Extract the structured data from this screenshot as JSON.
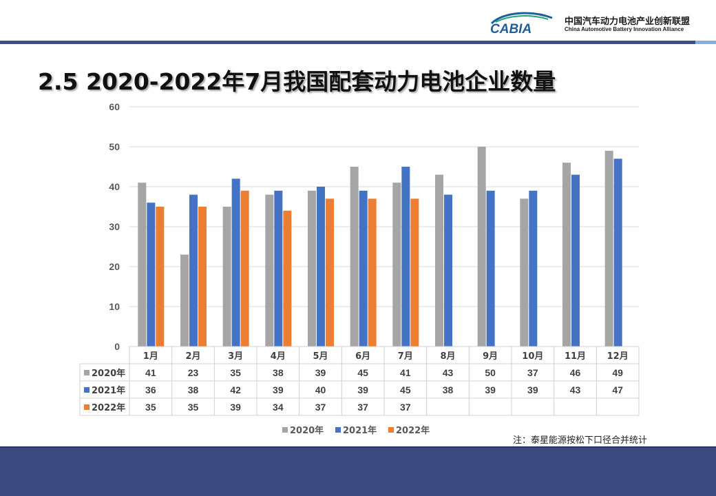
{
  "header": {
    "logo_text": "CABIA",
    "org_name_cn": "中国汽车动力电池产业创新联盟",
    "org_name_en": "China Automotive Battery Innovation Alliance"
  },
  "slide": {
    "title": "2.5 2020-2022年7月我国配套动力电池企业数量",
    "footnote": "注：泰星能源按松下口径合并统计"
  },
  "colors": {
    "series_2020": "#a5a5a5",
    "series_2021": "#4472c4",
    "series_2022": "#ed7d31",
    "header_bar": "#3d4e8c",
    "bottom_band": "#3d4a7f"
  },
  "chart_data": {
    "type": "bar",
    "categories": [
      "1月",
      "2月",
      "3月",
      "4月",
      "5月",
      "6月",
      "7月",
      "8月",
      "9月",
      "10月",
      "11月",
      "12月"
    ],
    "series": [
      {
        "name": "2020年",
        "values": [
          41,
          23,
          35,
          38,
          39,
          45,
          41,
          43,
          50,
          37,
          46,
          49
        ]
      },
      {
        "name": "2021年",
        "values": [
          36,
          38,
          42,
          39,
          40,
          39,
          45,
          38,
          39,
          39,
          43,
          47
        ]
      },
      {
        "name": "2022年",
        "values": [
          35,
          35,
          39,
          34,
          37,
          37,
          37,
          null,
          null,
          null,
          null,
          null
        ]
      }
    ],
    "ylim": [
      0,
      60
    ],
    "yticks": [
      0,
      10,
      20,
      30,
      40,
      50,
      60
    ],
    "grid": true,
    "data_table": true,
    "legend_position": "bottom"
  }
}
